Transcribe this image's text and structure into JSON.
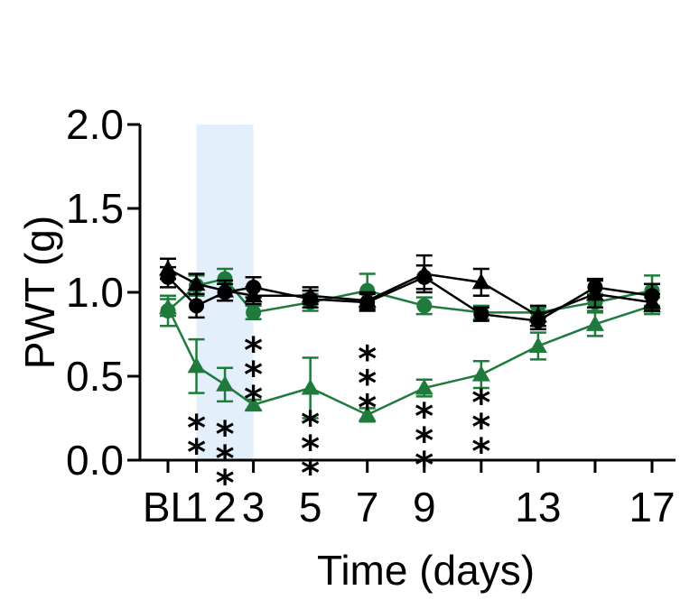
{
  "chart_data": {
    "type": "line",
    "xlabel": "Time (days)",
    "ylabel": "PWT (g)",
    "x_ticks": [
      {
        "x": 0,
        "label": "BL"
      },
      {
        "x": 1,
        "label": "1"
      },
      {
        "x": 2,
        "label": "2"
      },
      {
        "x": 3,
        "label": "3"
      },
      {
        "x": 5,
        "label": "5"
      },
      {
        "x": 7,
        "label": "7"
      },
      {
        "x": 9,
        "label": "9"
      },
      {
        "x": 13,
        "label": "13"
      },
      {
        "x": 17,
        "label": "17"
      }
    ],
    "y_ticks": [
      "0.0",
      "0.5",
      "1.0",
      "1.5",
      "2.0"
    ],
    "ylim": [
      0,
      2.0
    ],
    "shaded_region": {
      "x_start": 1,
      "x_end": 3,
      "color": "#e3f0fb"
    },
    "grid": false,
    "legend": "none",
    "series": [
      {
        "color": "#1e7b3c",
        "marker": "triangle",
        "x": [
          0,
          1,
          2,
          3,
          5,
          7,
          9,
          11,
          13,
          15,
          17
        ],
        "y": [
          0.91,
          0.56,
          0.45,
          0.33,
          0.43,
          0.27,
          0.43,
          0.51,
          0.68,
          0.81,
          0.92
        ],
        "err": [
          0.05,
          0.16,
          0.1,
          0.03,
          0.18,
          0.04,
          0.05,
          0.08,
          0.08,
          0.07,
          0.05
        ]
      },
      {
        "color": "#1e7b3c",
        "marker": "circle",
        "x": [
          0,
          1,
          2,
          3,
          5,
          7,
          9,
          11,
          13,
          15,
          17
        ],
        "y": [
          0.89,
          1.04,
          1.08,
          0.88,
          0.94,
          1.01,
          0.92,
          0.88,
          0.88,
          0.94,
          1.01
        ],
        "err": [
          0.09,
          0.06,
          0.06,
          0.04,
          0.05,
          0.1,
          0.05,
          0.04,
          0.03,
          0.05,
          0.09
        ]
      },
      {
        "color": "#000000",
        "marker": "triangle",
        "x": [
          0,
          1,
          2,
          3,
          5,
          7,
          9,
          11,
          13,
          15,
          17
        ],
        "y": [
          1.14,
          1.05,
          1.01,
          0.98,
          0.98,
          0.95,
          1.11,
          1.06,
          0.86,
          0.99,
          0.94
        ],
        "err": [
          0.06,
          0.06,
          0.06,
          0.05,
          0.05,
          0.05,
          0.11,
          0.08,
          0.06,
          0.08,
          0.05
        ]
      },
      {
        "color": "#000000",
        "marker": "circle",
        "x": [
          0,
          1,
          2,
          3,
          5,
          7,
          9,
          11,
          13,
          15,
          17
        ],
        "y": [
          1.09,
          0.92,
          1.0,
          1.03,
          0.96,
          0.94,
          1.09,
          0.87,
          0.83,
          1.03,
          0.98
        ],
        "err": [
          0.06,
          0.07,
          0.05,
          0.06,
          0.05,
          0.05,
          0.07,
          0.04,
          0.05,
          0.05,
          0.07
        ]
      }
    ],
    "annotations": [
      {
        "x": 1,
        "text": "**",
        "count": 2,
        "y": 0.27
      },
      {
        "x": 2,
        "text": "***",
        "count": 3,
        "y": 0.23
      },
      {
        "x": 3,
        "text": "***",
        "count": 3,
        "y": 0.73
      },
      {
        "x": 5,
        "text": "***",
        "count": 3,
        "y": 0.29
      },
      {
        "x": 7,
        "text": "***",
        "count": 3,
        "y": 0.68
      },
      {
        "x": 9,
        "text": "***",
        "count": 3,
        "y": 0.34
      },
      {
        "x": 11,
        "text": "***",
        "count": 3,
        "y": 0.42
      }
    ]
  }
}
